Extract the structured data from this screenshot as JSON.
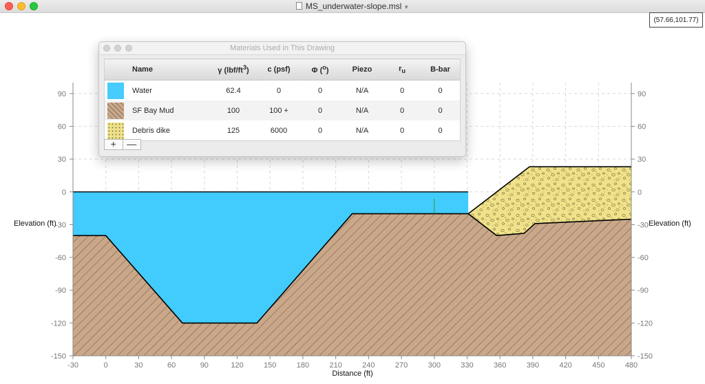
{
  "window": {
    "title": "MS_underwater-slope.msl"
  },
  "coordinate_readout": "(57.66,101.77)",
  "plot": {
    "x_axis_title": "Distance (ft)",
    "y_axis_title_left": "Elevation (ft)",
    "y_axis_title_right": "Elevation (ft)",
    "x_range": [
      -30,
      480
    ],
    "y_range": [
      -150,
      100
    ],
    "x_ticks": [
      -30,
      0,
      30,
      60,
      90,
      120,
      150,
      180,
      210,
      240,
      270,
      300,
      330,
      360,
      390,
      420,
      450,
      480
    ],
    "y_ticks": [
      90,
      60,
      30,
      0,
      -30,
      -60,
      -90,
      -120,
      -150
    ],
    "grid": true,
    "colors": {
      "water": "#42cbfd",
      "mud": "#c9a788",
      "dike": "#efe28a",
      "outline": "#000000"
    },
    "regions": {
      "water": [
        [
          -30,
          0
        ],
        [
          331,
          0
        ],
        [
          331,
          -20
        ],
        [
          225,
          -20
        ],
        [
          138,
          -120
        ],
        [
          70,
          -120
        ],
        [
          0,
          -40
        ],
        [
          -30,
          -40
        ]
      ],
      "mud": [
        [
          -30,
          -40
        ],
        [
          0,
          -40
        ],
        [
          70,
          -120
        ],
        [
          138,
          -120
        ],
        [
          225,
          -20
        ],
        [
          331,
          -20
        ],
        [
          357,
          -40
        ],
        [
          382,
          -38
        ],
        [
          392,
          -29
        ],
        [
          480,
          -25
        ],
        [
          480,
          -150
        ],
        [
          -30,
          -150
        ]
      ],
      "dike": [
        [
          331,
          -20
        ],
        [
          357,
          -40
        ],
        [
          382,
          -38
        ],
        [
          392,
          -29
        ],
        [
          480,
          -25
        ],
        [
          480,
          23
        ],
        [
          387,
          23
        ]
      ]
    },
    "piezo_marker_x": 300
  },
  "materials_panel": {
    "title": "Materials Used in This Drawing",
    "columns": {
      "name": "Name",
      "gamma_symbol": "γ",
      "gamma_unit": "(lbf/ft",
      "gamma_exp": "3",
      "gamma_close": ")",
      "c": "c (psf)",
      "phi_symbol": "Φ",
      "phi_unit": "(",
      "phi_deg": "o",
      "phi_close": ")",
      "piezo": "Piezo",
      "ru_base": "r",
      "ru_sub": "u",
      "bbar": "B-bar"
    },
    "rows": [
      {
        "swatch": "water",
        "name": "Water",
        "gamma": "62.4",
        "c": "0",
        "phi": "0",
        "piezo": "N/A",
        "ru": "0",
        "bbar": "0"
      },
      {
        "swatch": "mud",
        "name": "SF Bay Mud",
        "gamma": "100",
        "c": "100 +",
        "phi": "0",
        "piezo": "N/A",
        "ru": "0",
        "bbar": "0"
      },
      {
        "swatch": "dike",
        "name": "Debris dike",
        "gamma": "125",
        "c": "6000",
        "phi": "0",
        "piezo": "N/A",
        "ru": "0",
        "bbar": "0"
      }
    ],
    "add_button": "+",
    "remove_button": "—"
  }
}
